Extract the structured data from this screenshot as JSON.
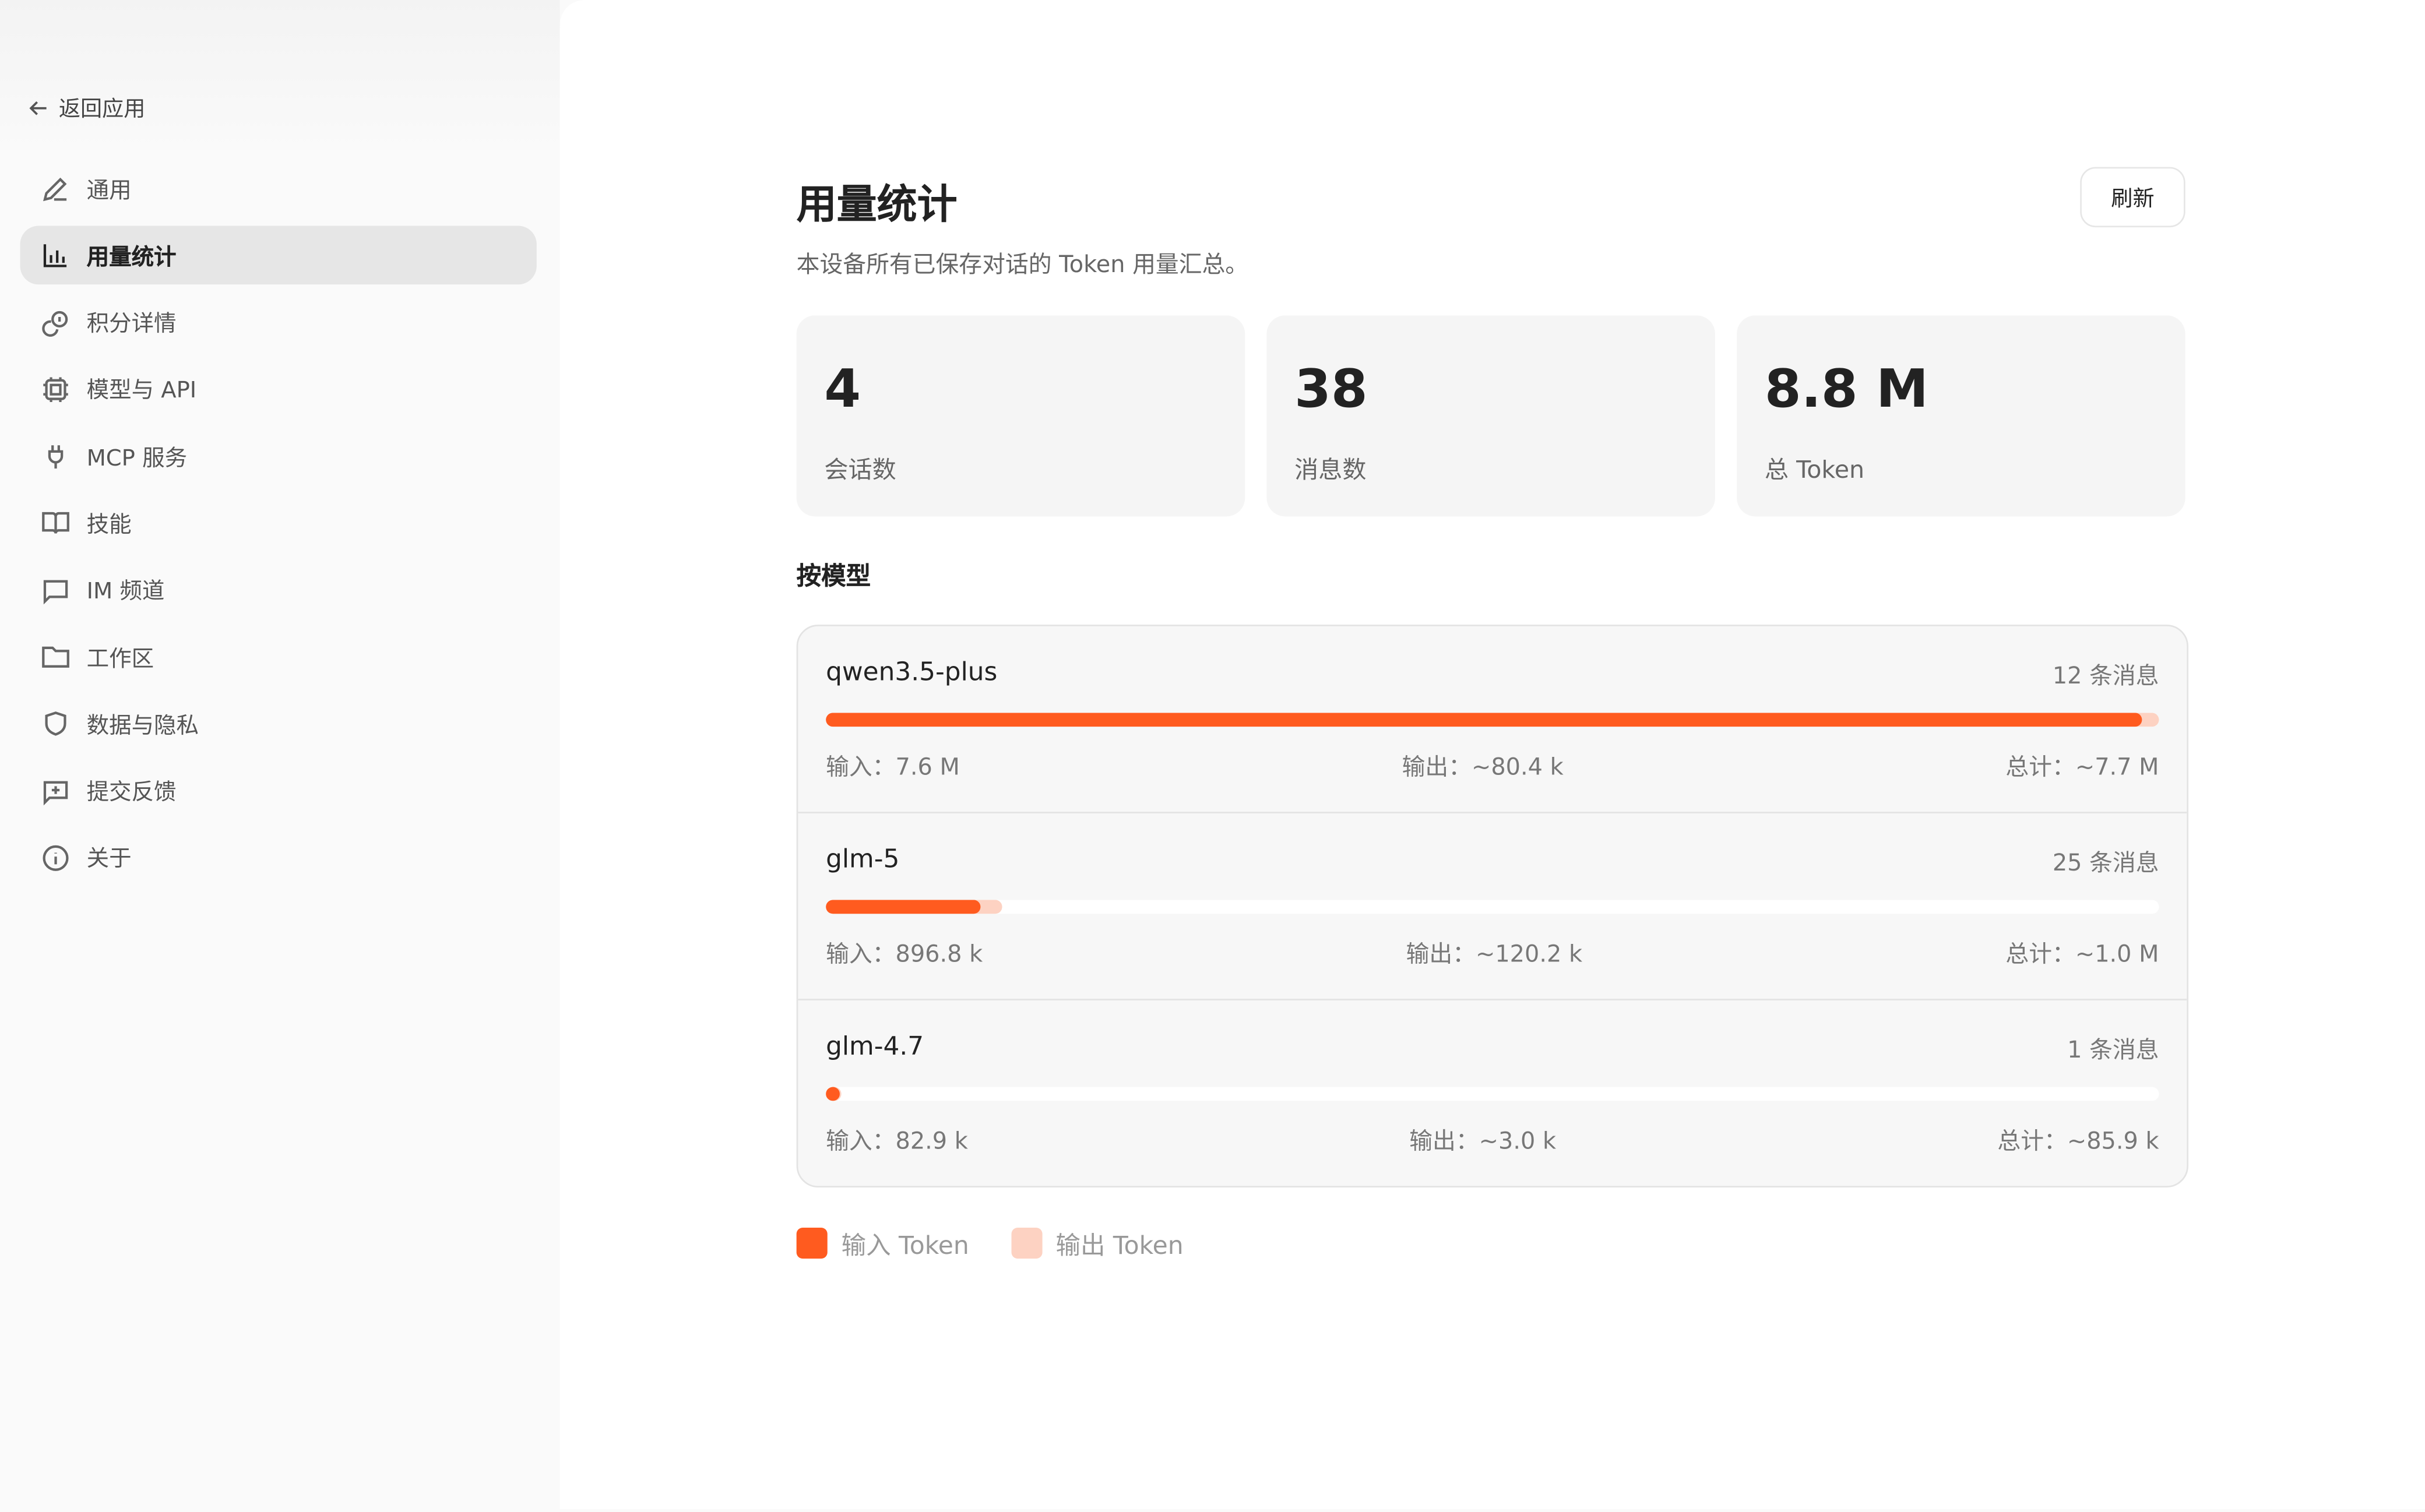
{
  "sidebar": {
    "back_label": "返回应用",
    "items": [
      {
        "label": "通用",
        "icon": "pencil-icon"
      },
      {
        "label": "用量统计",
        "icon": "bar-chart-icon",
        "active": true
      },
      {
        "label": "积分详情",
        "icon": "coins-icon"
      },
      {
        "label": "模型与 API",
        "icon": "chip-icon"
      },
      {
        "label": "MCP 服务",
        "icon": "plug-icon"
      },
      {
        "label": "技能",
        "icon": "book-icon"
      },
      {
        "label": "IM 频道",
        "icon": "message-icon"
      },
      {
        "label": "工作区",
        "icon": "folder-icon"
      },
      {
        "label": "数据与隐私",
        "icon": "shield-icon"
      },
      {
        "label": "提交反馈",
        "icon": "feedback-icon"
      },
      {
        "label": "关于",
        "icon": "info-icon"
      }
    ]
  },
  "header": {
    "title": "用量统计",
    "subtitle": "本设备所有已保存对话的 Token 用量汇总。",
    "refresh_label": "刷新"
  },
  "summary": [
    {
      "value": "4",
      "label": "会话数"
    },
    {
      "value": "38",
      "label": "消息数"
    },
    {
      "value": "8.8 M",
      "label": "总 Token"
    }
  ],
  "by_model_title": "按模型",
  "models": [
    {
      "name": "qwen3.5-plus",
      "messages": "12 条消息",
      "input": "输入：7.6 M",
      "output": "输出：~80.4 k",
      "total": "总计：~7.7 M",
      "input_tokens": 7600000,
      "total_tokens": 7700000
    },
    {
      "name": "glm-5",
      "messages": "25 条消息",
      "input": "输入：896.8 k",
      "output": "输出：~120.2 k",
      "total": "总计：~1.0 M",
      "input_tokens": 896800,
      "total_tokens": 1017000
    },
    {
      "name": "glm-4.7",
      "messages": "1 条消息",
      "input": "输入：82.9 k",
      "output": "输出：~3.0 k",
      "total": "总计：~85.9 k",
      "input_tokens": 82900,
      "total_tokens": 85900
    }
  ],
  "legend": [
    {
      "label": "输入 Token",
      "color": "#ff5b1f"
    },
    {
      "label": "输出 Token",
      "color": "#fdd2c2"
    }
  ]
}
